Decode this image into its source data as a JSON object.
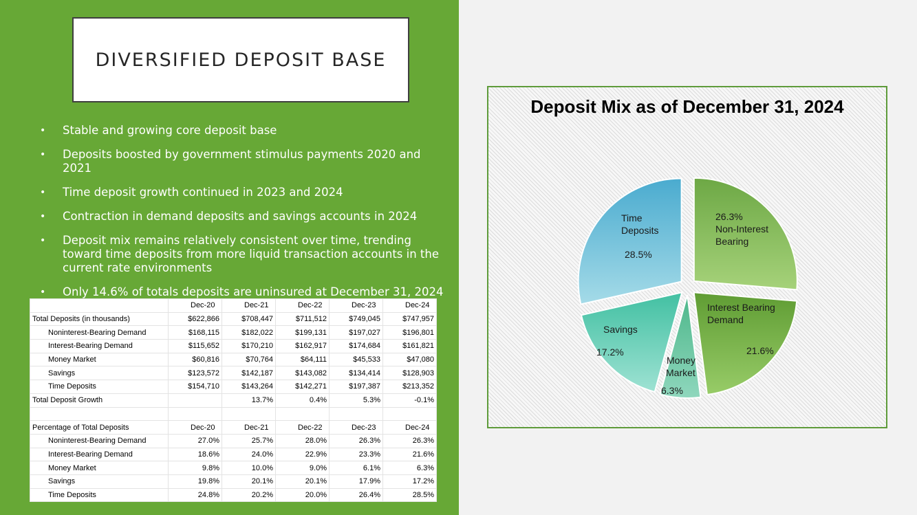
{
  "slide": {
    "title": "DIVERSIFIED DEPOSIT BASE",
    "bullets": [
      "Stable and growing core deposit base",
      "Deposits boosted by government stimulus payments 2020 and 2021",
      "Time deposit growth continued in 2023 and 2024",
      "Contraction in demand deposits and savings accounts in 2024",
      "Deposit mix remains relatively consistent over time, trending toward time deposits from more liquid transaction accounts in the current rate environments",
      "Only 14.6% of totals deposits are uninsured at December 31, 2024"
    ],
    "colors": {
      "panel": "#67a836",
      "background": "#f2f2f2"
    }
  },
  "table": {
    "columns": [
      "Dec-20",
      "Dec-21",
      "Dec-22",
      "Dec-23",
      "Dec-24"
    ],
    "deposits": [
      {
        "label": "Total Deposits (in thousands)",
        "values": [
          "$622,866",
          "$708,447",
          "$711,512",
          "$749,045",
          "$747,957"
        ]
      },
      {
        "label": "Noninterest-Bearing Demand",
        "values": [
          "$168,115",
          "$182,022",
          "$199,131",
          "$197,027",
          "$196,801"
        ]
      },
      {
        "label": "Interest-Bearing Demand",
        "values": [
          "$115,652",
          "$170,210",
          "$162,917",
          "$174,684",
          "$161,821"
        ]
      },
      {
        "label": "Money Market",
        "values": [
          "$60,816",
          "$70,764",
          "$64,111",
          "$45,533",
          "$47,080"
        ]
      },
      {
        "label": "Savings",
        "values": [
          "$123,572",
          "$142,187",
          "$143,082",
          "$134,414",
          "$128,903"
        ]
      },
      {
        "label": "Time Deposits",
        "values": [
          "$154,710",
          "$143,264",
          "$142,271",
          "$197,387",
          "$213,352"
        ]
      },
      {
        "label": "Total Deposit Growth",
        "values": [
          "",
          "13.7%",
          "0.4%",
          "5.3%",
          "-0.1%"
        ]
      }
    ],
    "pct_header": "Percentage of Total Deposits",
    "percentages": [
      {
        "label": "Noninterest-Bearing Demand",
        "values": [
          "27.0%",
          "25.7%",
          "28.0%",
          "26.3%",
          "26.3%"
        ]
      },
      {
        "label": "Interest-Bearing Demand",
        "values": [
          "18.6%",
          "24.0%",
          "22.9%",
          "23.3%",
          "21.6%"
        ]
      },
      {
        "label": "Money Market",
        "values": [
          "9.8%",
          "10.0%",
          "9.0%",
          "6.1%",
          "6.3%"
        ]
      },
      {
        "label": "Savings",
        "values": [
          "19.8%",
          "20.1%",
          "20.1%",
          "17.9%",
          "17.2%"
        ]
      },
      {
        "label": "Time Deposits",
        "values": [
          "24.8%",
          "20.2%",
          "20.0%",
          "26.4%",
          "28.5%"
        ]
      }
    ]
  },
  "chart_data": {
    "type": "pie",
    "title": "Deposit Mix as of December 31, 2024",
    "slices": [
      {
        "label": "Non-Interest Bearing",
        "value": 26.3,
        "value_label": "26.3%",
        "color_light": "#a6d27a",
        "color_dark": "#6da845"
      },
      {
        "label": "Interest Bearing Demand",
        "value": 21.6,
        "value_label": "21.6%",
        "color_light": "#98cc68",
        "color_dark": "#5f9c33"
      },
      {
        "label": "Money Market",
        "value": 6.3,
        "value_label": "6.3%",
        "color_light": "#8fd7bd",
        "color_dark": "#4db78a"
      },
      {
        "label": "Savings",
        "value": 17.2,
        "value_label": "17.2%",
        "color_light": "#9ee2d3",
        "color_dark": "#42c0a2"
      },
      {
        "label": "Time Deposits",
        "value": 28.5,
        "value_label": "28.5%",
        "color_light": "#a5dbe8",
        "color_dark": "#4aabcf"
      }
    ],
    "legend": "none"
  }
}
